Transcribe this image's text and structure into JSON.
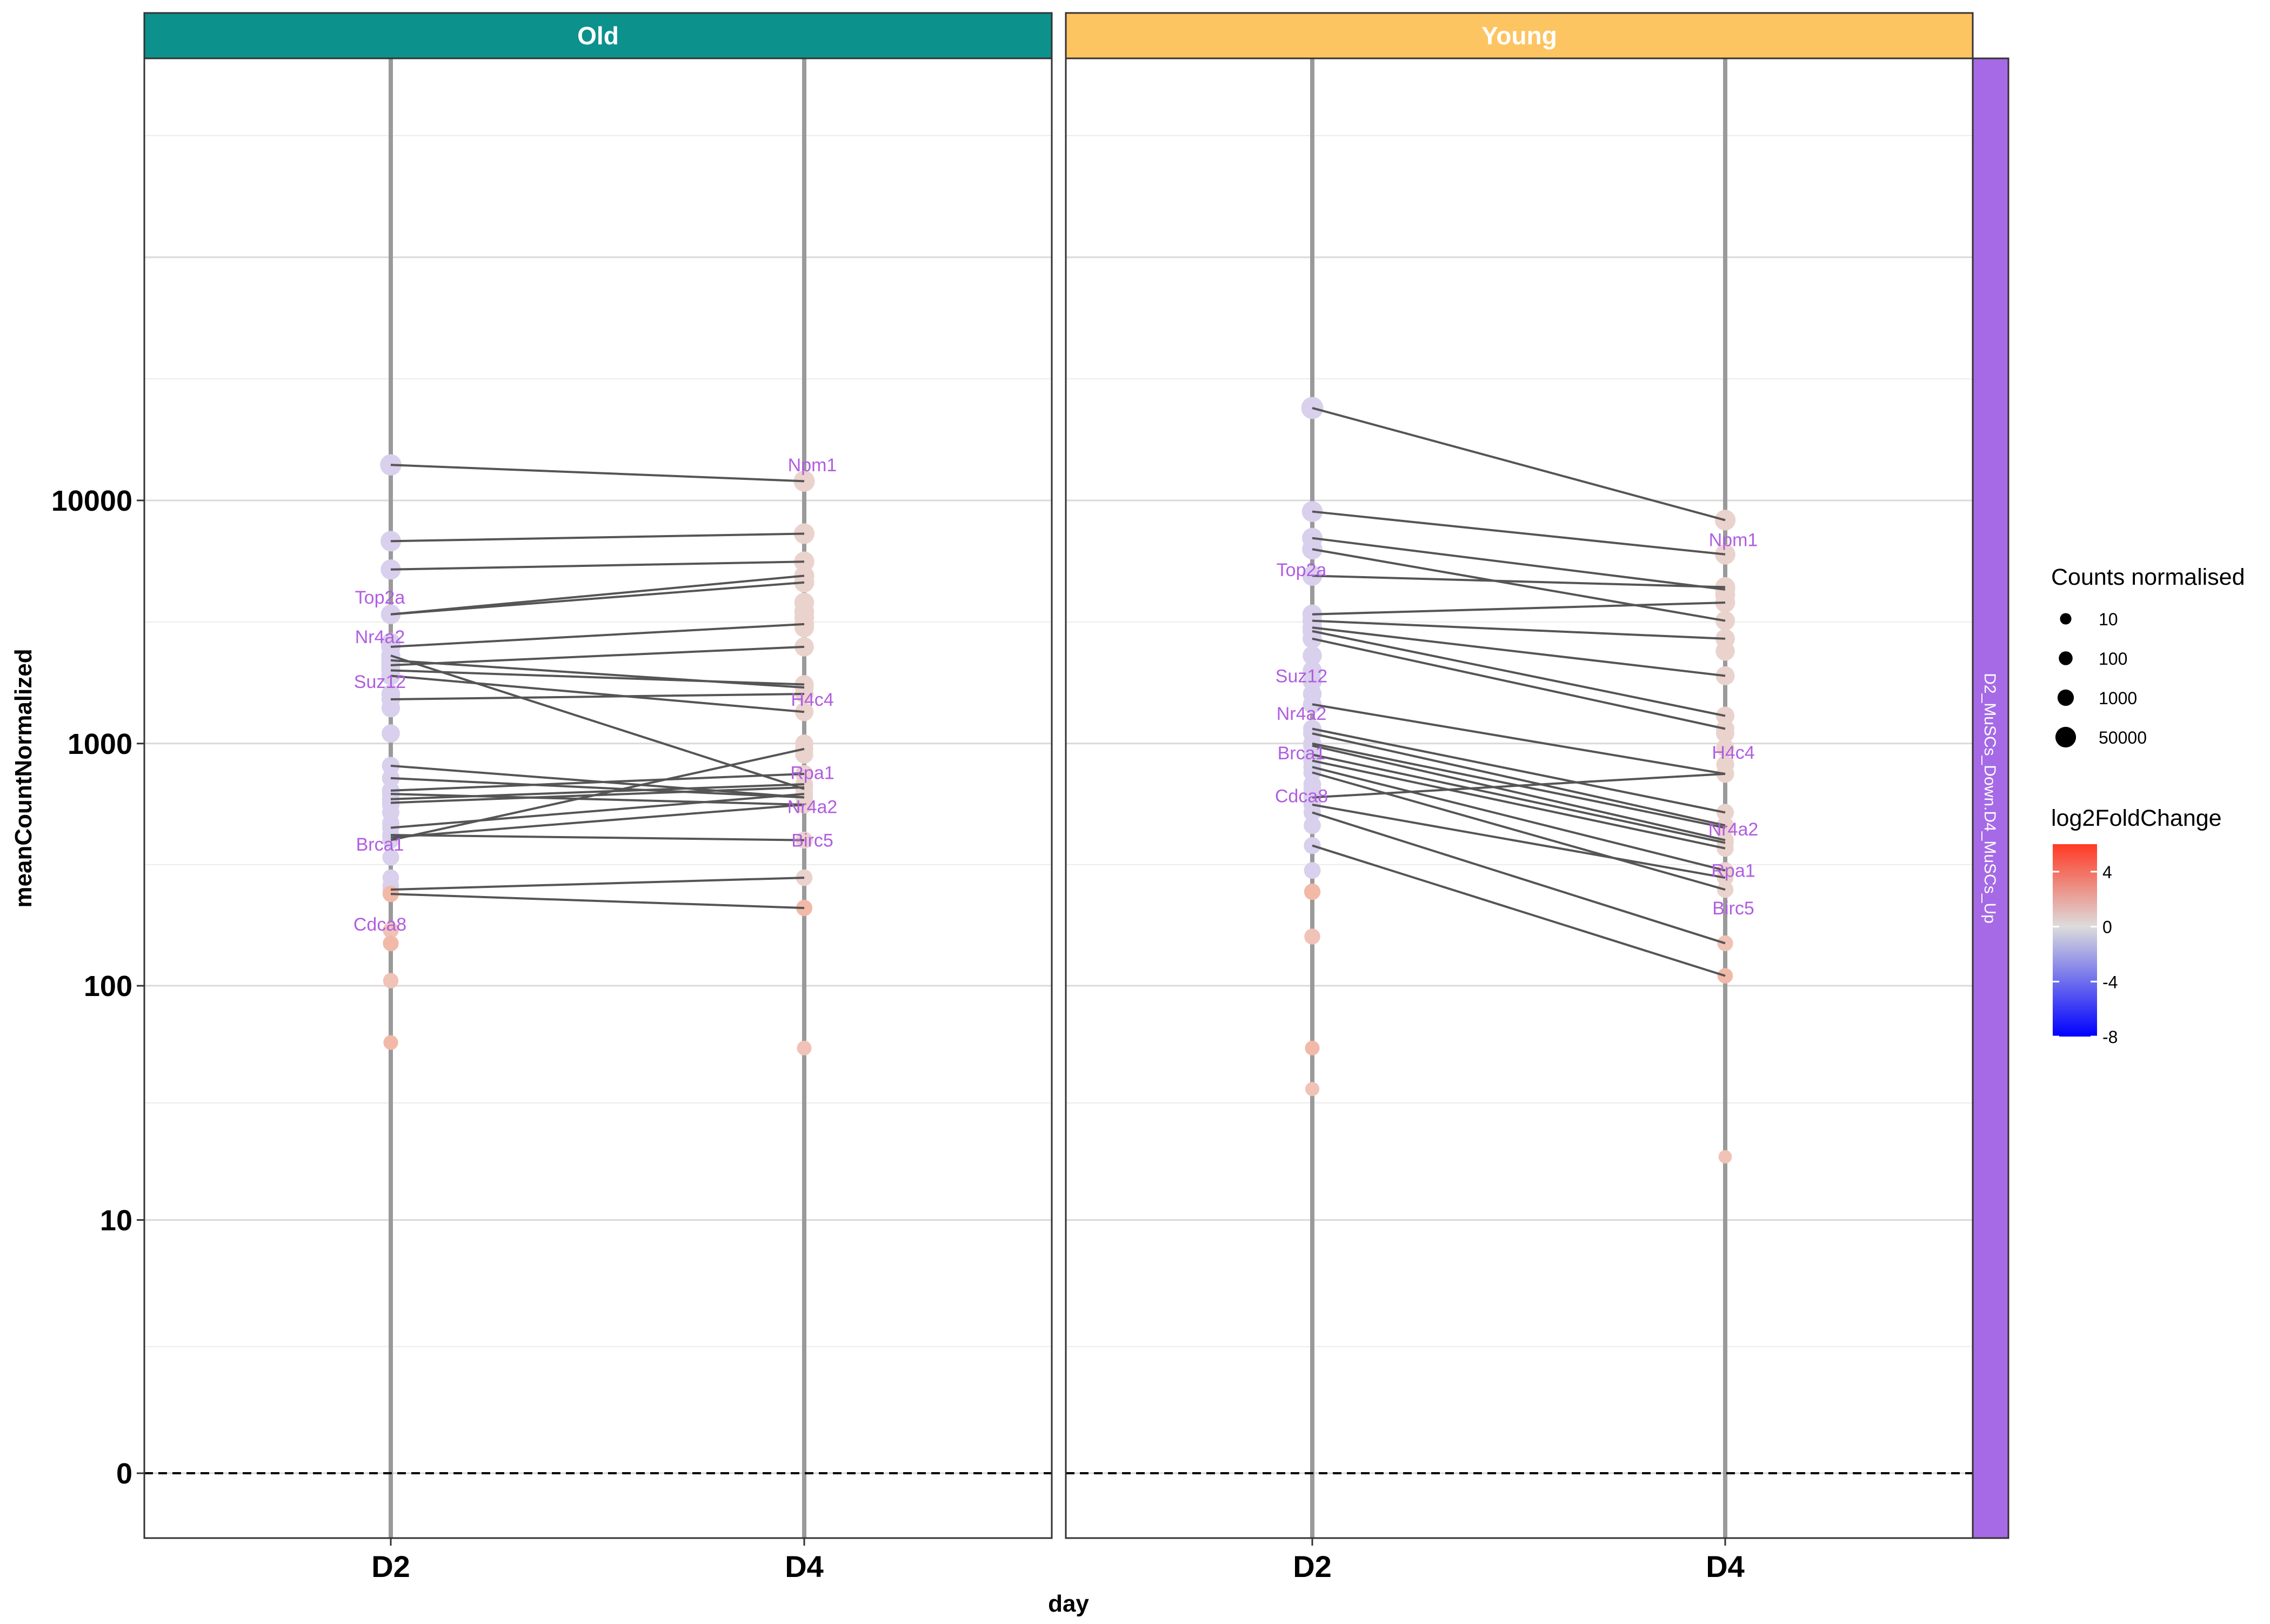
{
  "chart_data": {
    "type": "scatter",
    "xlabel": "day",
    "ylabel": "meanCountNormalized",
    "categories": [
      "D2",
      "D4"
    ],
    "y_ticks": [
      {
        "label": "10000",
        "value": 10000
      },
      {
        "label": "1000",
        "value": 1000
      },
      {
        "label": "100",
        "value": 100
      },
      {
        "label": "10",
        "value": 10
      },
      {
        "label": "0",
        "value": 0
      }
    ],
    "ylim": [
      -1,
      1000000
    ],
    "y_scale": "log10(1+y)",
    "zero_line": "dashed",
    "row_strip": {
      "label": "D2_MuSCs_Down.D4_MuSCs_Up",
      "color": "#a66ae6"
    },
    "panels": [
      {
        "title": "Old",
        "strip_color": "#0c918d",
        "pairs": [
          [
            14000,
            12000
          ],
          [
            6800,
            7300
          ],
          [
            5200,
            5600
          ],
          [
            3400,
            4900
          ],
          [
            3400,
            4600
          ],
          [
            2500,
            3100
          ],
          [
            2300,
            650
          ],
          [
            2200,
            1700
          ],
          [
            2100,
            2500
          ],
          [
            2000,
            1750
          ],
          [
            1520,
            1600
          ],
          [
            1900,
            1350
          ],
          [
            810,
            600
          ],
          [
            720,
            600
          ],
          [
            640,
            750
          ],
          [
            620,
            560
          ],
          [
            590,
            680
          ],
          [
            570,
            660
          ],
          [
            450,
            620
          ],
          [
            410,
            560
          ],
          [
            400,
            950
          ],
          [
            420,
            400
          ],
          [
            250,
            280
          ],
          [
            240,
            210
          ]
        ],
        "d2_only": [
          1100,
          1400,
          1600,
          2600,
          560,
          520,
          470,
          340,
          280,
          260,
          170,
          150,
          105,
          58
        ],
        "d4_only": [
          3500,
          3800,
          3300,
          3000,
          1000,
          900,
          55
        ],
        "labels": [
          {
            "text": "Npm1",
            "day": "D4",
            "y": 14000
          },
          {
            "text": "Top2a",
            "day": "D2",
            "y": 4000
          },
          {
            "text": "Nr4a2",
            "day": "D2",
            "y": 2750
          },
          {
            "text": "Suz12",
            "day": "D2",
            "y": 1800
          },
          {
            "text": "H4c4",
            "day": "D4",
            "y": 1520
          },
          {
            "text": "Rpa1",
            "day": "D4",
            "y": 760
          },
          {
            "text": "Nr4a2",
            "day": "D4",
            "y": 550
          },
          {
            "text": "Birc5",
            "day": "D4",
            "y": 400
          },
          {
            "text": "Brca1",
            "day": "D2",
            "y": 385
          },
          {
            "text": "Cdca8",
            "day": "D2",
            "y": 180
          }
        ]
      },
      {
        "title": "Young",
        "strip_color": "#fdc462",
        "pairs": [
          [
            24000,
            8300
          ],
          [
            9000,
            6000
          ],
          [
            7000,
            4300
          ],
          [
            6300,
            3200
          ],
          [
            4900,
            4400
          ],
          [
            3400,
            3800
          ],
          [
            3200,
            2700
          ],
          [
            3000,
            1900
          ],
          [
            2900,
            1300
          ],
          [
            2700,
            1150
          ],
          [
            1450,
            750
          ],
          [
            1150,
            520
          ],
          [
            1100,
            460
          ],
          [
            1000,
            450
          ],
          [
            980,
            400
          ],
          [
            900,
            390
          ],
          [
            850,
            370
          ],
          [
            800,
            300
          ],
          [
            760,
            250
          ],
          [
            560,
            280
          ],
          [
            520,
            150
          ],
          [
            380,
            110
          ],
          [
            600,
            750
          ]
        ],
        "d2_only": [
          24000,
          2300,
          2000,
          1800,
          1600,
          680,
          650,
          460,
          300,
          245,
          160,
          55,
          37
        ],
        "d4_only": [
          4100,
          3800,
          2400,
          1100,
          960,
          820,
          19
        ],
        "labels": [
          {
            "text": "Npm1",
            "day": "D4",
            "y": 6900
          },
          {
            "text": "Top2a",
            "day": "D2",
            "y": 5200
          },
          {
            "text": "Suz12",
            "day": "D2",
            "y": 1900
          },
          {
            "text": "Nr4a2",
            "day": "D2",
            "y": 1330
          },
          {
            "text": "H4c4",
            "day": "D4",
            "y": 920
          },
          {
            "text": "Brca1",
            "day": "D2",
            "y": 915
          },
          {
            "text": "Cdca8",
            "day": "D2",
            "y": 610
          },
          {
            "text": "Nr4a2",
            "day": "D4",
            "y": 445
          },
          {
            "text": "Rpa1",
            "day": "D4",
            "y": 300
          },
          {
            "text": "Birc5",
            "day": "D4",
            "y": 210
          }
        ]
      }
    ],
    "legend_size": {
      "title": "Counts normalised",
      "entries": [
        {
          "label": "10",
          "value": 10
        },
        {
          "label": "100",
          "value": 100
        },
        {
          "label": "1000",
          "value": 1000
        },
        {
          "label": "50000",
          "value": 50000
        }
      ]
    },
    "legend_color": {
      "title": "log2FoldChange",
      "ticks": [
        {
          "label": "4",
          "value": 4
        },
        {
          "label": "0",
          "value": 0
        },
        {
          "label": "-4",
          "value": -4
        },
        {
          "label": "-8",
          "value": -8
        }
      ],
      "range": [
        -8,
        6
      ],
      "low_color": "#0000ff",
      "mid_color": "#dcdcdc",
      "high_color": "#ff3a24"
    },
    "colors": {
      "point_d2": "#d8d0ec",
      "point_d4": "#ead3cd",
      "point_warm": "#f2b9a8",
      "line": "#555555",
      "label": "#b05ee0",
      "axis_line": "#9a9a9a"
    }
  }
}
